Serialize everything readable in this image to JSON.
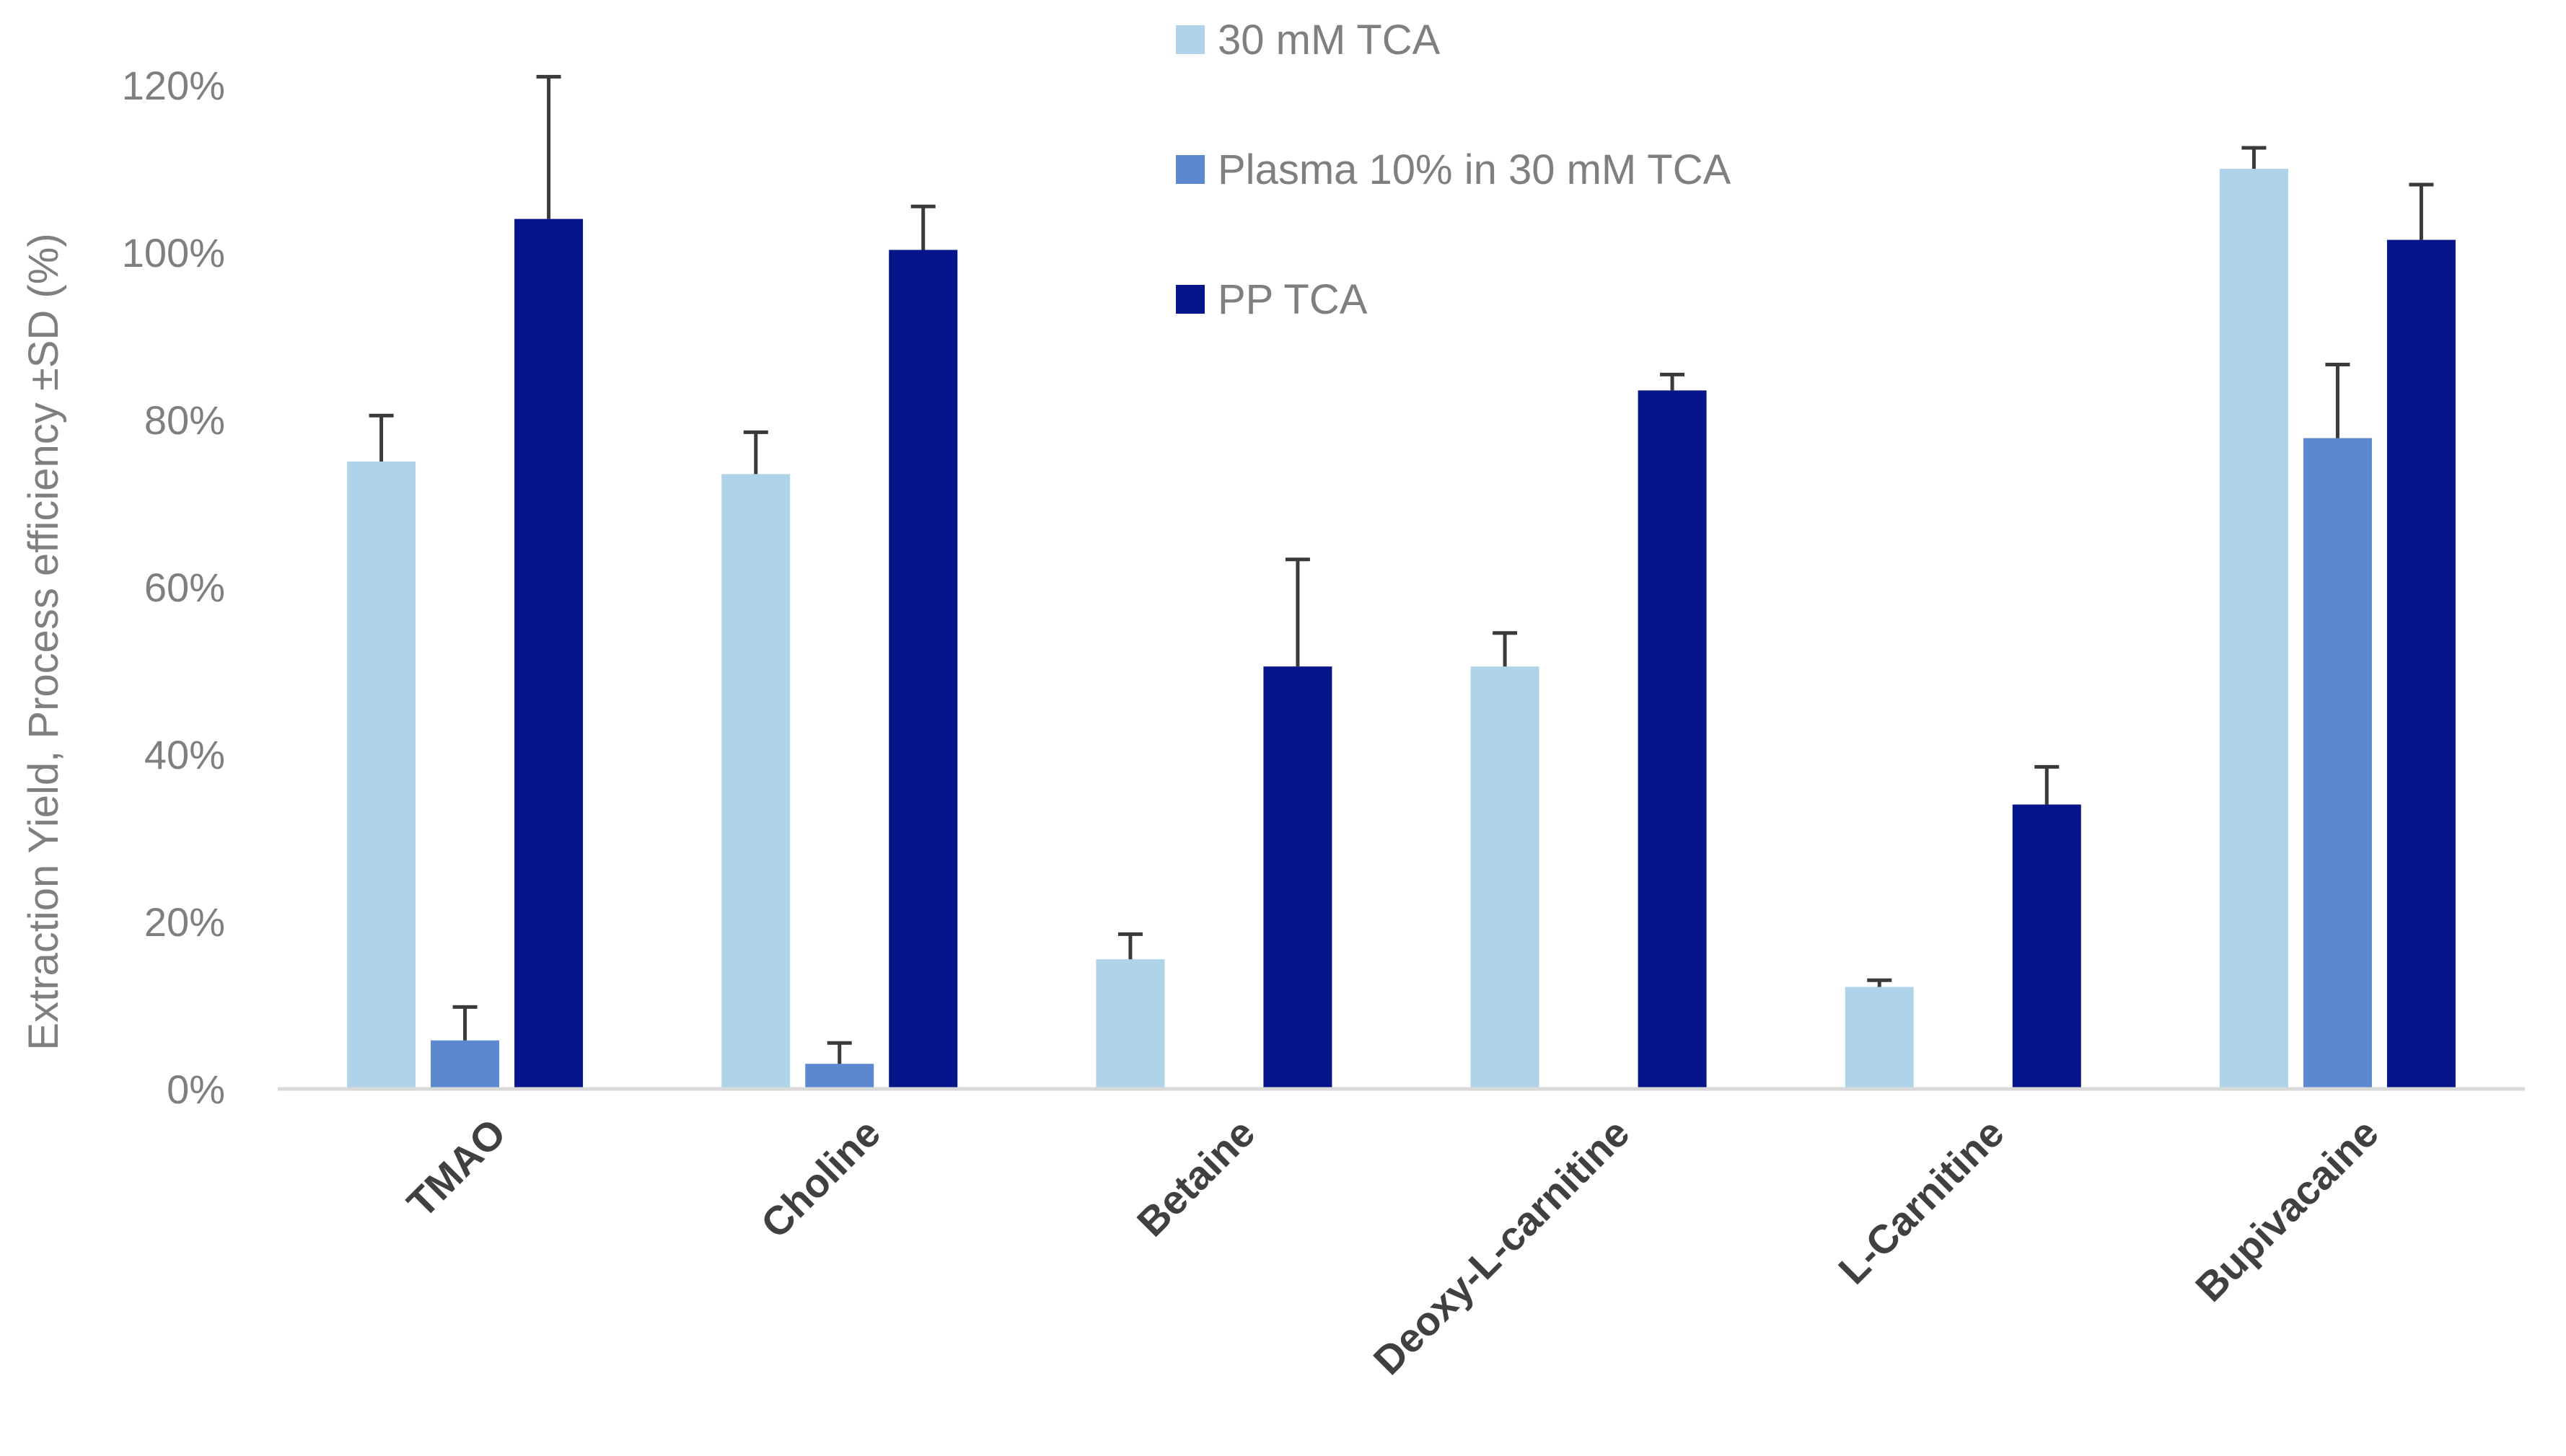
{
  "chart_data": {
    "type": "bar",
    "title": "",
    "xlabel": "",
    "ylabel": "Extraction Yield, Process efficiency ±SD (%)",
    "ylim": [
      0,
      120
    ],
    "yticks": [
      "0%",
      "20%",
      "40%",
      "60%",
      "80%",
      "100%",
      "120%"
    ],
    "ytick_values": [
      0,
      20,
      40,
      60,
      80,
      100,
      120
    ],
    "grid": false,
    "legend_position": "top-center",
    "categories": [
      "TMAO",
      "Choline",
      "Betaine",
      "Deoxy-L-carnitine",
      "L-Carnitine",
      "Bupivacaine"
    ],
    "series": [
      {
        "name": "30 mM TCA",
        "color": "#afd4ea",
        "values": [
          75,
          73.5,
          15.5,
          50.5,
          12.2,
          110
        ],
        "errors": [
          5.5,
          5,
          3,
          4,
          0.8,
          2.5
        ]
      },
      {
        "name": "Plasma 10% in 30 mM TCA",
        "color": "#5b88ce",
        "values": [
          5.8,
          3,
          null,
          null,
          null,
          77.8
        ],
        "errors": [
          4,
          2.5,
          null,
          null,
          null,
          8.8
        ]
      },
      {
        "name": "PP TCA",
        "color": "#06168a",
        "values": [
          104,
          100.3,
          50.5,
          83.5,
          34,
          101.5
        ],
        "errors": [
          17,
          5.2,
          12.8,
          1.9,
          4.5,
          6.6
        ]
      }
    ]
  }
}
